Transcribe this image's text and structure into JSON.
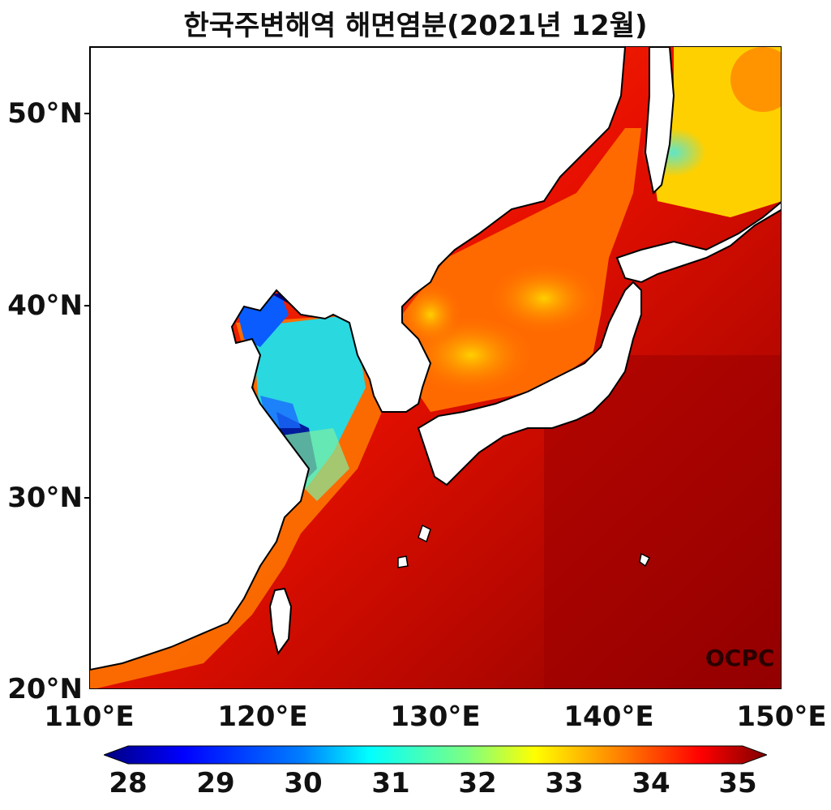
{
  "title": "한국주변해역 해면염분(2021년 12월)",
  "watermark": "OCPC",
  "axes": {
    "lon_ticks": [
      "110°E",
      "120°E",
      "130°E",
      "140°E",
      "150°E"
    ],
    "lat_ticks": [
      "50°N",
      "40°N",
      "30°N",
      "20°N"
    ]
  },
  "colorbar": {
    "ticks": [
      "28",
      "29",
      "30",
      "31",
      "32",
      "33",
      "34",
      "35"
    ],
    "colormap": [
      "#00007f",
      "#0000ff",
      "#007fff",
      "#00ffff",
      "#7fff7f",
      "#ffff00",
      "#ff7f00",
      "#ff0000",
      "#7f0000"
    ],
    "extend": "both"
  },
  "map": {
    "lon_range": [
      110,
      150
    ],
    "lat_range": [
      20,
      53.5
    ],
    "land_color": "#ffffff",
    "coast_color": "#000000"
  }
}
